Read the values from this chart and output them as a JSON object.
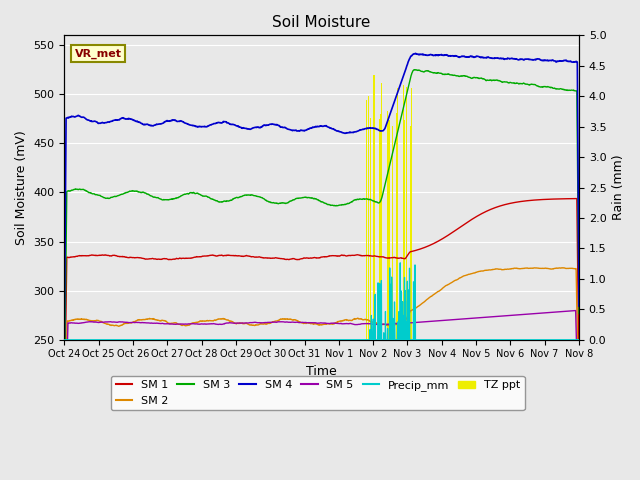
{
  "title": "Soil Moisture",
  "ylabel_left": "Soil Moisture (mV)",
  "ylabel_right": "Rain (mm)",
  "xlabel": "Time",
  "annotation": "VR_met",
  "ylim_left": [
    250,
    560
  ],
  "ylim_right": [
    0.0,
    5.0
  ],
  "yticks_left": [
    250,
    300,
    350,
    400,
    450,
    500,
    550
  ],
  "yticks_right": [
    0.0,
    0.5,
    1.0,
    1.5,
    2.0,
    2.5,
    3.0,
    3.5,
    4.0,
    4.5,
    5.0
  ],
  "xtick_labels": [
    "Oct 24",
    "Oct 25",
    "Oct 26",
    "Oct 27",
    "Oct 28",
    "Oct 29",
    "Oct 30",
    "Oct 31",
    "Nov 1",
    "Nov 2",
    "Nov 3",
    "Nov 4",
    "Nov 5",
    "Nov 6",
    "Nov 7",
    "Nov 8"
  ],
  "n_days": 15,
  "colors": {
    "SM1": "#cc0000",
    "SM2": "#dd8800",
    "SM3": "#00aa00",
    "SM4": "#0000cc",
    "SM5": "#9900aa",
    "Precip": "#00cccc",
    "TZ": "#eeee00",
    "background": "#e8e8e8",
    "fig_bg": "#e8e8e8",
    "grid": "#ffffff"
  }
}
